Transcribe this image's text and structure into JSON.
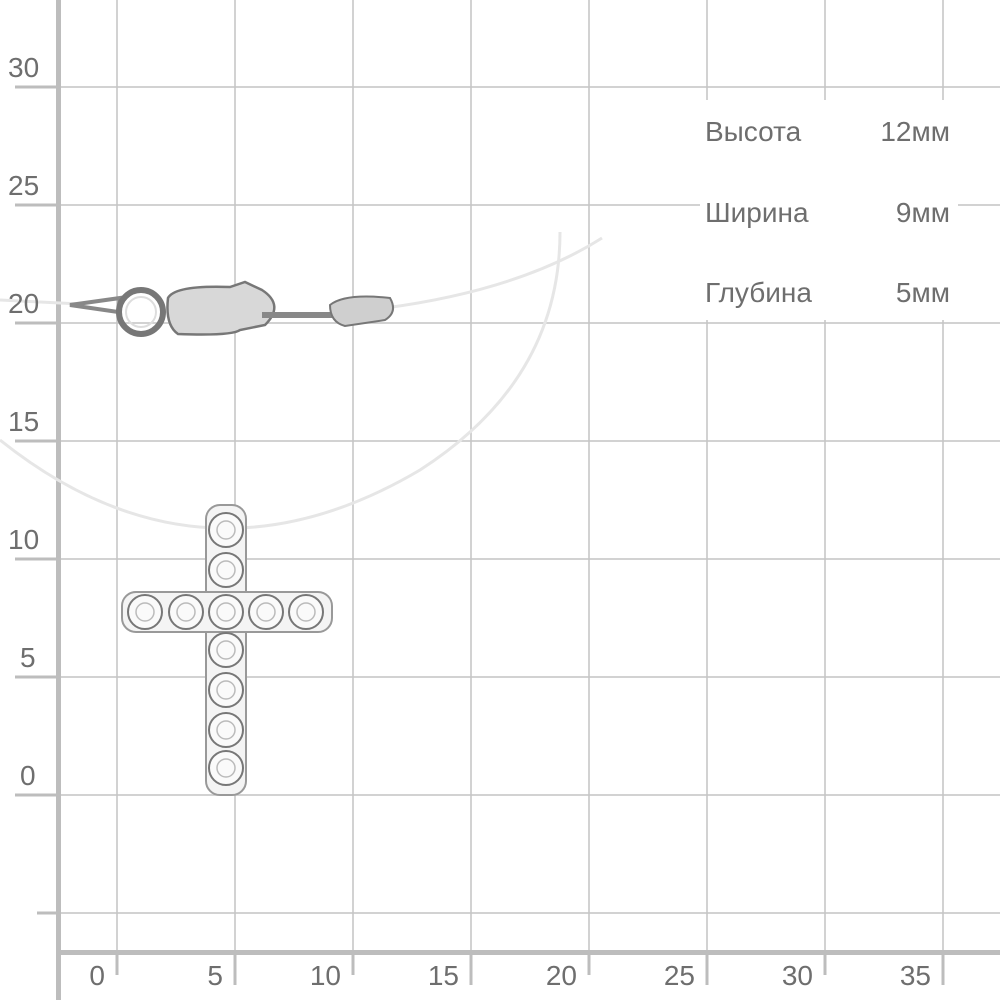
{
  "y_axis": {
    "ticks": [
      "30",
      "25",
      "20",
      "15",
      "10",
      "5",
      "0"
    ]
  },
  "x_axis": {
    "ticks": [
      "0",
      "5",
      "10",
      "15",
      "20",
      "25",
      "30",
      "35"
    ]
  },
  "specs": [
    {
      "label": "Высота",
      "value": "12мм"
    },
    {
      "label": "Ширина",
      "value": "9мм"
    },
    {
      "label": "Глубина",
      "value": "5мм"
    }
  ],
  "colors": {
    "grid": "#c0c0c0",
    "axis": "#bdbdbd",
    "text": "#6e6e6e",
    "metal": "#9a9a9a"
  }
}
